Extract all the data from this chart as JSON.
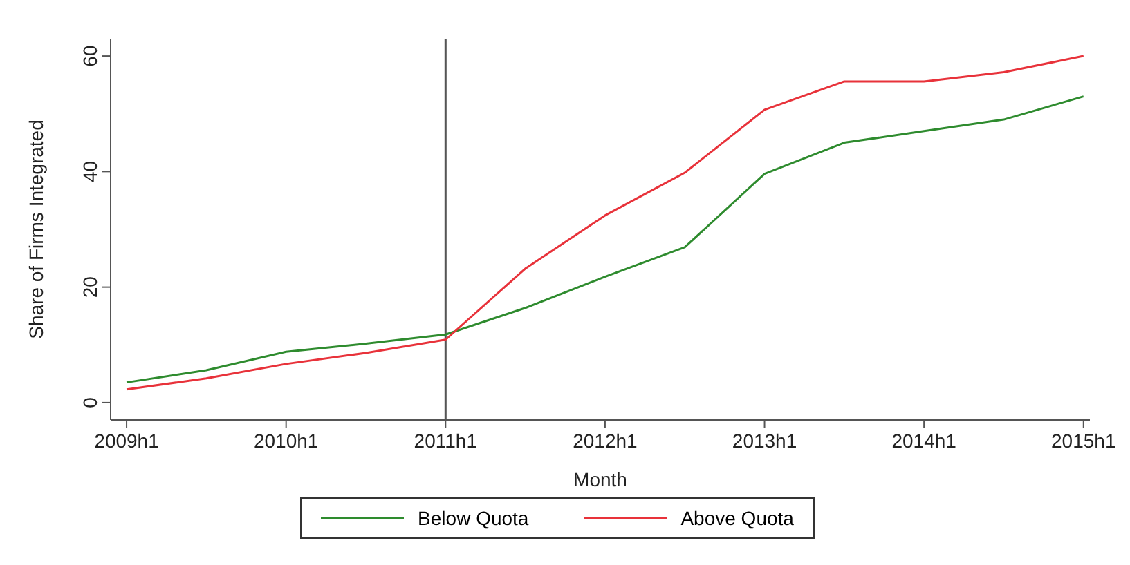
{
  "chart_data": {
    "type": "line",
    "xlabel": "Month",
    "ylabel": "Share of Firms Integrated",
    "categories": [
      "2009h1",
      null,
      "2010h1",
      null,
      "2011h1",
      null,
      "2012h1",
      null,
      "2013h1",
      null,
      "2014h1",
      null,
      "2015h1"
    ],
    "series": [
      {
        "name": "Below Quota",
        "color": "#2e8b2e",
        "values": [
          3.5,
          5.6,
          8.8,
          10.2,
          11.8,
          16.4,
          21.8,
          26.9,
          39.6,
          45,
          47,
          49,
          53
        ]
      },
      {
        "name": "Above Quota",
        "color": "#e8323a",
        "values": [
          2.3,
          4.2,
          6.7,
          8.6,
          10.9,
          23.2,
          32.4,
          39.8,
          50.7,
          55.6,
          55.6,
          57.2,
          60
        ]
      }
    ],
    "ylim": [
      -3,
      63
    ],
    "yticks": [
      0,
      20,
      40,
      60
    ],
    "ref_lines": [
      {
        "axis": "x",
        "value": "2011h1",
        "color": "#555555"
      }
    ],
    "grid": false,
    "legend": "bottom",
    "marker": "none",
    "line_style": "solid"
  }
}
